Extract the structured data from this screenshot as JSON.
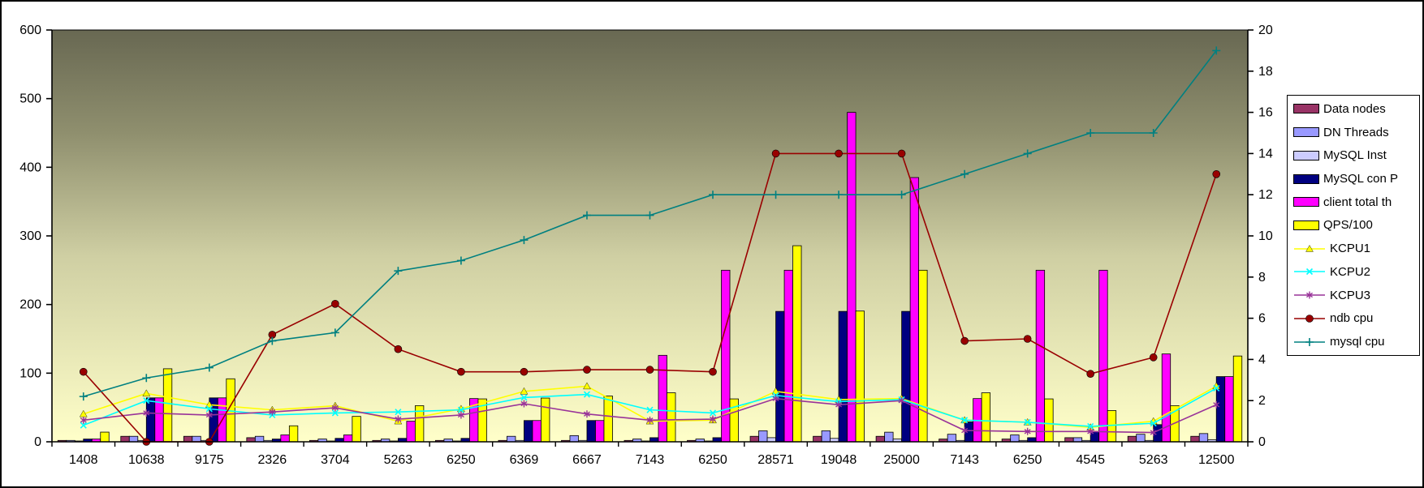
{
  "chart_data": {
    "type": "bar",
    "subtype": "combo-bar-line-dual-axis",
    "title": "",
    "xlabel": "",
    "ylabel_left": "",
    "ylabel_right": "",
    "grid": false,
    "legend_position": "right",
    "plot_bg_gradient": [
      "#686852",
      "#8F8F6E",
      "#CFCFA3",
      "#FFFFC9"
    ],
    "categories": [
      "1408",
      "10638",
      "9175",
      "2326",
      "3704",
      "5263",
      "6250",
      "6369",
      "6667",
      "7143",
      "6250",
      "28571",
      "19048",
      "25000",
      "7143",
      "6250",
      "4545",
      "5263",
      "12500"
    ],
    "left_axis": {
      "min": 0,
      "max": 600,
      "step": 100,
      "ticks": [
        "0",
        "100",
        "200",
        "300",
        "400",
        "500",
        "600"
      ]
    },
    "right_axis": {
      "min": 0,
      "max": 20,
      "step": 2,
      "ticks": [
        "0",
        "2",
        "4",
        "6",
        "8",
        "10",
        "12",
        "14",
        "16",
        "18",
        "20"
      ]
    },
    "series": [
      {
        "name": "Data nodes",
        "kind": "bar",
        "axis": "left",
        "color": "#993366",
        "values": [
          2,
          8,
          8,
          6,
          2,
          2,
          2,
          2,
          2,
          2,
          2,
          8,
          8,
          8,
          4,
          4,
          6,
          8,
          8
        ]
      },
      {
        "name": "DN Threads",
        "kind": "bar",
        "axis": "left",
        "color": "#9999FF",
        "values": [
          2,
          8,
          8,
          8,
          4,
          4,
          4,
          8,
          9,
          4,
          4,
          16,
          16,
          14,
          11,
          10,
          6,
          11,
          12
        ]
      },
      {
        "name": "MySQL Inst",
        "kind": "bar",
        "axis": "left",
        "color": "#CCCCFF",
        "values": [
          1,
          2,
          2,
          2,
          1,
          1,
          1,
          2,
          2,
          1,
          1,
          6,
          5,
          4,
          2,
          2,
          2,
          2,
          3
        ]
      },
      {
        "name": "MySQL con P",
        "kind": "bar",
        "axis": "left",
        "color": "#000080",
        "values": [
          4,
          64,
          64,
          4,
          5,
          5,
          5,
          31,
          31,
          6,
          6,
          190,
          190,
          190,
          29,
          6,
          15,
          25,
          95
        ]
      },
      {
        "name": "client total th",
        "kind": "bar",
        "axis": "left",
        "color": "#FF00FF",
        "values": [
          4,
          64,
          64,
          10,
          10,
          30,
          63,
          31,
          31,
          126,
          250,
          250,
          480,
          385,
          63,
          250,
          250,
          128,
          95
        ]
      },
      {
        "name": "QPS/100",
        "kind": "bar",
        "axis": "left",
        "color": "#FFFF00",
        "values": [
          14.1,
          106.4,
          91.8,
          23.3,
          37,
          52.6,
          62.5,
          63.7,
          66.7,
          71.4,
          62.5,
          285.7,
          190.5,
          250,
          71.4,
          62.5,
          45.5,
          52.6,
          125
        ]
      },
      {
        "name": "KCPU1",
        "kind": "line",
        "axis": "right",
        "color": "#FFFF00",
        "marker": "triangle",
        "values": [
          1.35,
          2.35,
          1.8,
          1.55,
          1.75,
          1.0,
          1.6,
          2.45,
          2.7,
          1.0,
          1.05,
          2.45,
          2.05,
          2.1,
          1.05,
          0.95,
          0.7,
          1.0,
          2.7
        ]
      },
      {
        "name": "KCPU2",
        "kind": "line",
        "axis": "right",
        "color": "#00FFFF",
        "marker": "x",
        "values": [
          0.8,
          2.0,
          1.6,
          1.3,
          1.4,
          1.45,
          1.55,
          2.15,
          2.3,
          1.55,
          1.4,
          2.25,
          1.95,
          2.05,
          1.05,
          0.95,
          0.75,
          0.9,
          2.6
        ]
      },
      {
        "name": "KCPU3",
        "kind": "line",
        "axis": "right",
        "color": "#993399",
        "marker": "asterisk",
        "values": [
          1.05,
          1.4,
          1.3,
          1.45,
          1.65,
          1.1,
          1.3,
          1.85,
          1.35,
          1.05,
          1.1,
          2.1,
          1.8,
          2.0,
          0.55,
          0.5,
          0.5,
          0.45,
          1.8
        ]
      },
      {
        "name": "ndb cpu",
        "kind": "line",
        "axis": "right",
        "color": "#990000",
        "marker": "circle",
        "values": [
          3.4,
          0,
          0,
          5.2,
          6.7,
          4.5,
          3.4,
          3.4,
          3.5,
          3.5,
          3.4,
          14,
          14,
          14,
          4.9,
          5.0,
          3.3,
          4.1,
          13
        ]
      },
      {
        "name": "mysql cpu",
        "kind": "line",
        "axis": "right",
        "color": "#008080",
        "marker": "plus",
        "values": [
          2.2,
          3.1,
          3.6,
          4.9,
          5.3,
          8.3,
          8.8,
          9.8,
          11,
          11,
          12,
          12,
          12,
          12,
          13,
          14,
          15,
          15,
          19
        ]
      }
    ]
  }
}
